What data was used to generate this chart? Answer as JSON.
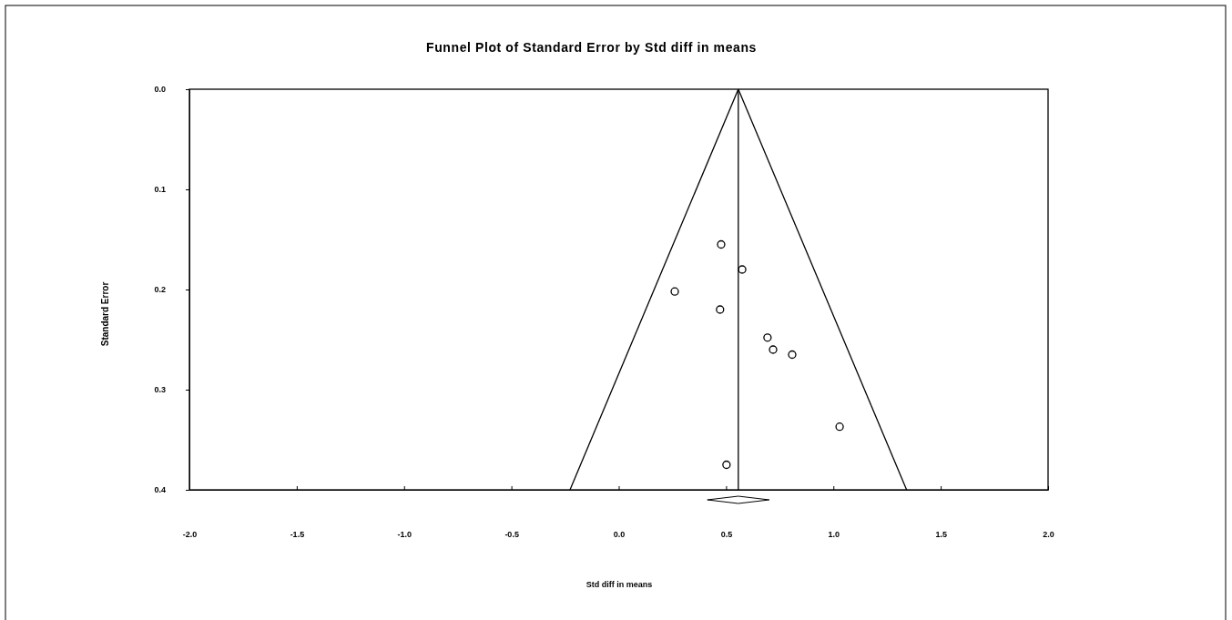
{
  "chart_data": {
    "type": "scatter",
    "title": "Funnel Plot of Standard Error by Std diff in means",
    "xlabel": "Std diff in means",
    "ylabel": "Standard Error",
    "series": [
      {
        "marker": "circle",
        "color": "#000000",
        "x": [
          0.477,
          0.575,
          0.261,
          0.472,
          0.693,
          0.719,
          0.808,
          1.029,
          0.502
        ],
        "values": [
          0.155,
          0.18,
          0.202,
          0.22,
          0.248,
          0.26,
          0.265,
          0.337,
          0.375
        ]
      },
      {
        "type": "line",
        "color": "#000000",
        "x": [
          0.557,
          -0.227
        ],
        "values": [
          0,
          0.4
        ]
      },
      {
        "type": "line",
        "color": "#000000",
        "x": [
          0.557,
          1.341
        ],
        "values": [
          0,
          0.4
        ]
      }
    ],
    "ref_lines": [
      {
        "axis": "x",
        "value": 0.557,
        "color": "#000000"
      }
    ],
    "xlim": [
      -2,
      2
    ],
    "ylim": [
      0.4,
      0
    ],
    "xticks": [
      {
        "value": -2,
        "label": "-2.0"
      },
      {
        "value": -1.5,
        "label": "-1.5"
      },
      {
        "value": -1,
        "label": "-1.0"
      },
      {
        "value": -0.5,
        "label": "-0.5"
      },
      {
        "value": 0,
        "label": "0.0"
      },
      {
        "value": 0.5,
        "label": "0.5"
      },
      {
        "value": 1,
        "label": "1.0"
      },
      {
        "value": 1.5,
        "label": "1.5"
      },
      {
        "value": 2,
        "label": "2.0"
      }
    ],
    "yticks": [
      {
        "value": 0,
        "label": "0.0"
      },
      {
        "value": 0.1,
        "label": "0.1"
      },
      {
        "value": 0.2,
        "label": "0.2"
      },
      {
        "value": 0.3,
        "label": "0.3"
      },
      {
        "value": 0.4,
        "label": "0.4"
      }
    ],
    "grid": false
  }
}
